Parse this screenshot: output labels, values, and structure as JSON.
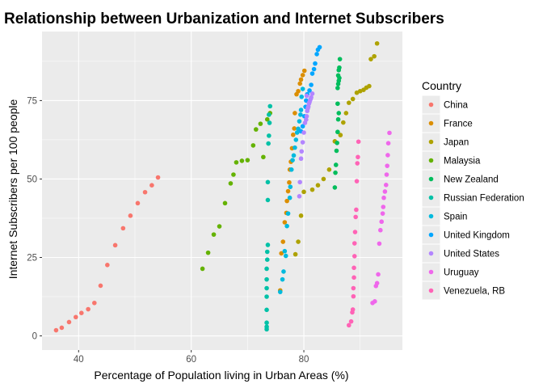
{
  "chart_data": {
    "type": "scatter",
    "title": "Relationship between Urbanization and Internet Subscribers",
    "xlabel": "Percentage of Population living in Urban Areas (%)",
    "ylabel": "Internet Subscribers per 100 people",
    "xlim": [
      33.5,
      97.5
    ],
    "ylim": [
      -4.5,
      97
    ],
    "x_ticks": [
      40,
      60,
      80
    ],
    "y_ticks": [
      0,
      25,
      50,
      75
    ],
    "grid": true,
    "legend": {
      "title": "Country",
      "position": "right"
    },
    "series": [
      {
        "name": "China",
        "color": "#F8766D",
        "points": [
          [
            36.0,
            1.8
          ],
          [
            37.0,
            2.6
          ],
          [
            38.3,
            4.4
          ],
          [
            39.5,
            6.0
          ],
          [
            40.5,
            7.3
          ],
          [
            41.7,
            8.5
          ],
          [
            42.8,
            10.5
          ],
          [
            43.9,
            16.0
          ],
          [
            45.1,
            22.6
          ],
          [
            46.5,
            28.9
          ],
          [
            47.9,
            34.3
          ],
          [
            49.2,
            38.3
          ],
          [
            50.5,
            42.3
          ],
          [
            51.8,
            45.8
          ],
          [
            53.0,
            48.0
          ],
          [
            54.1,
            50.5
          ]
        ]
      },
      {
        "name": "France",
        "color": "#DB8E00",
        "points": [
          [
            75.8,
            14.5
          ],
          [
            76.0,
            26.3
          ],
          [
            76.3,
            30.0
          ],
          [
            76.6,
            36.2
          ],
          [
            76.9,
            39.2
          ],
          [
            77.0,
            43.0
          ],
          [
            77.2,
            46.1
          ],
          [
            77.4,
            48.9
          ],
          [
            77.5,
            53.0
          ],
          [
            77.7,
            55.5
          ],
          [
            77.9,
            59.8
          ],
          [
            78.1,
            64.1
          ],
          [
            78.3,
            66.1
          ],
          [
            78.4,
            71.0
          ],
          [
            78.7,
            77.0
          ],
          [
            79.0,
            78.0
          ],
          [
            79.3,
            80.4
          ],
          [
            79.5,
            81.7
          ],
          [
            79.8,
            83.1
          ],
          [
            80.1,
            84.5
          ]
        ]
      },
      {
        "name": "Japan",
        "color": "#AEA200",
        "points": [
          [
            78.5,
            26.0
          ],
          [
            79.0,
            30.0
          ],
          [
            79.5,
            38.3
          ],
          [
            80.0,
            45.9
          ],
          [
            81.5,
            46.6
          ],
          [
            82.5,
            48.0
          ],
          [
            83.5,
            50.0
          ],
          [
            84.5,
            53.0
          ],
          [
            85.5,
            62.0
          ],
          [
            86.5,
            64.0
          ],
          [
            87.0,
            68.0
          ],
          [
            87.5,
            71.0
          ],
          [
            88.0,
            74.3
          ],
          [
            88.7,
            75.5
          ],
          [
            89.4,
            77.5
          ],
          [
            90.0,
            78.0
          ],
          [
            90.6,
            78.4
          ],
          [
            91.1,
            79.1
          ],
          [
            91.6,
            79.6
          ],
          [
            91.9,
            88.2
          ],
          [
            92.5,
            89.1
          ],
          [
            93.0,
            93.2
          ]
        ]
      },
      {
        "name": "Malaysia",
        "color": "#64B200",
        "points": [
          [
            62.0,
            21.4
          ],
          [
            63.0,
            26.5
          ],
          [
            64.0,
            32.3
          ],
          [
            65.0,
            34.9
          ],
          [
            66.0,
            42.3
          ],
          [
            67.0,
            48.6
          ],
          [
            67.5,
            51.4
          ],
          [
            68.0,
            55.3
          ],
          [
            69.0,
            55.8
          ],
          [
            70.0,
            56.0
          ],
          [
            71.0,
            60.7
          ],
          [
            71.5,
            65.8
          ],
          [
            72.3,
            67.6
          ],
          [
            72.8,
            57.0
          ],
          [
            73.5,
            69.0
          ],
          [
            74.0,
            71.0
          ]
        ]
      },
      {
        "name": "New Zealand",
        "color": "#00BD5C",
        "points": [
          [
            85.5,
            47.3
          ],
          [
            85.6,
            52.0
          ],
          [
            85.7,
            54.5
          ],
          [
            85.8,
            59.0
          ],
          [
            85.9,
            61.5
          ],
          [
            86.0,
            65.0
          ],
          [
            86.1,
            69.0
          ],
          [
            86.2,
            71.0
          ],
          [
            86.0,
            79.0
          ],
          [
            86.1,
            80.3
          ],
          [
            86.2,
            81.3
          ],
          [
            86.3,
            82.2
          ],
          [
            86.1,
            83.0
          ],
          [
            86.2,
            84.7
          ],
          [
            86.3,
            85.5
          ],
          [
            86.4,
            88.2
          ],
          [
            86.0,
            74.0
          ]
        ]
      },
      {
        "name": "Russian Federation",
        "color": "#00C1A7",
        "points": [
          [
            73.4,
            2.1
          ],
          [
            73.4,
            2.9
          ],
          [
            73.4,
            4.2
          ],
          [
            73.4,
            8.3
          ],
          [
            73.4,
            12.5
          ],
          [
            73.4,
            15.2
          ],
          [
            73.4,
            18.0
          ],
          [
            73.4,
            21.4
          ],
          [
            73.5,
            24.3
          ],
          [
            73.5,
            26.8
          ],
          [
            73.6,
            29.0
          ],
          [
            73.6,
            43.3
          ],
          [
            73.6,
            49.0
          ],
          [
            73.7,
            61.3
          ],
          [
            73.8,
            63.8
          ],
          [
            73.9,
            67.9
          ],
          [
            73.8,
            70.5
          ],
          [
            74.0,
            73.2
          ]
        ]
      },
      {
        "name": "Spain",
        "color": "#00BADE",
        "points": [
          [
            75.8,
            14.0
          ],
          [
            76.2,
            18.0
          ],
          [
            76.4,
            20.5
          ],
          [
            76.8,
            25.5
          ],
          [
            76.6,
            27.0
          ],
          [
            77.0,
            35.0
          ],
          [
            77.2,
            39.0
          ],
          [
            77.5,
            44.0
          ],
          [
            77.6,
            47.5
          ],
          [
            77.8,
            53.0
          ],
          [
            78.0,
            56.0
          ],
          [
            78.2,
            57.5
          ],
          [
            78.4,
            60.0
          ],
          [
            78.6,
            62.5
          ],
          [
            78.8,
            64.8
          ],
          [
            79.0,
            66.0
          ],
          [
            79.2,
            68.4
          ],
          [
            79.4,
            70.5
          ],
          [
            79.5,
            72.0
          ],
          [
            79.6,
            76.2
          ],
          [
            79.8,
            78.7
          ]
        ]
      },
      {
        "name": "United Kingdom",
        "color": "#00A6FF",
        "points": [
          [
            79.5,
            65.2
          ],
          [
            79.8,
            66.8
          ],
          [
            80.1,
            70.0
          ],
          [
            80.3,
            73.0
          ],
          [
            80.4,
            75.0
          ],
          [
            80.6,
            77.0
          ],
          [
            81.0,
            78.2
          ],
          [
            81.3,
            80.0
          ],
          [
            81.5,
            83.6
          ],
          [
            81.8,
            85.0
          ],
          [
            82.0,
            86.8
          ],
          [
            82.3,
            89.8
          ],
          [
            82.5,
            91.2
          ],
          [
            82.8,
            92.0
          ]
        ]
      },
      {
        "name": "United States",
        "color": "#B385FF",
        "points": [
          [
            79.2,
            44.5
          ],
          [
            79.3,
            49.0
          ],
          [
            79.5,
            56.5
          ],
          [
            79.6,
            58.8
          ],
          [
            79.8,
            61.7
          ],
          [
            80.0,
            64.8
          ],
          [
            80.2,
            67.9
          ],
          [
            80.4,
            68.9
          ],
          [
            80.5,
            70.0
          ],
          [
            80.6,
            71.7
          ],
          [
            80.7,
            72.5
          ],
          [
            80.8,
            73.0
          ],
          [
            80.9,
            74.0
          ],
          [
            81.0,
            74.5
          ],
          [
            81.1,
            75.1
          ],
          [
            81.2,
            75.5
          ],
          [
            81.3,
            76.0
          ],
          [
            80.5,
            76.5
          ],
          [
            81.5,
            77.2
          ]
        ]
      },
      {
        "name": "Uruguay",
        "color": "#EF67EB",
        "points": [
          [
            92.2,
            10.5
          ],
          [
            92.6,
            11.0
          ],
          [
            92.8,
            15.9
          ],
          [
            93.0,
            16.8
          ],
          [
            93.2,
            19.6
          ],
          [
            93.4,
            29.4
          ],
          [
            93.6,
            33.7
          ],
          [
            93.8,
            36.4
          ],
          [
            94.0,
            39.0
          ],
          [
            94.1,
            41.1
          ],
          [
            94.2,
            44.0
          ],
          [
            94.4,
            46.0
          ],
          [
            94.6,
            48.1
          ],
          [
            94.7,
            51.4
          ],
          [
            94.8,
            54.2
          ],
          [
            94.9,
            57.6
          ],
          [
            95.0,
            61.4
          ],
          [
            95.2,
            64.7
          ]
        ]
      },
      {
        "name": "Venezuela, RB",
        "color": "#FF63B6",
        "points": [
          [
            88.0,
            3.4
          ],
          [
            88.4,
            4.6
          ],
          [
            88.6,
            7.5
          ],
          [
            88.7,
            8.4
          ],
          [
            88.8,
            12.6
          ],
          [
            88.8,
            15.2
          ],
          [
            88.9,
            18.6
          ],
          [
            88.9,
            21.7
          ],
          [
            89.0,
            25.4
          ],
          [
            89.0,
            29.5
          ],
          [
            89.1,
            33.1
          ],
          [
            89.2,
            37.9
          ],
          [
            89.3,
            40.2
          ],
          [
            89.4,
            49.3
          ],
          [
            89.5,
            55.0
          ],
          [
            89.6,
            57.0
          ],
          [
            89.7,
            61.9
          ]
        ]
      }
    ]
  }
}
